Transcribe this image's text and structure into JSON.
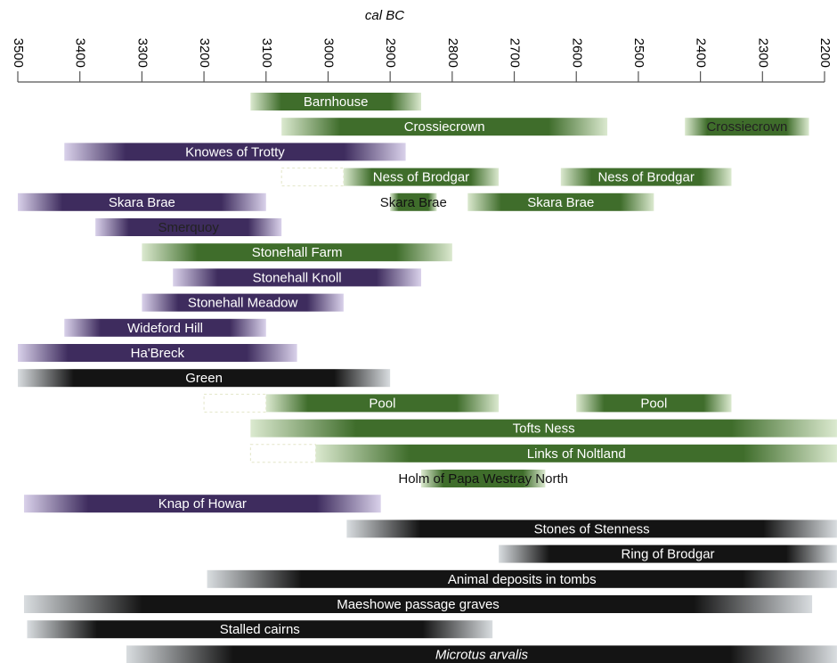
{
  "chart_data": {
    "type": "timeline",
    "x_label": "cal BC",
    "xlim": [
      3500,
      2200
    ],
    "xticks": [
      3500,
      3400,
      3300,
      3200,
      3100,
      3000,
      2900,
      2800,
      2700,
      2600,
      2500,
      2400,
      2300,
      2200
    ],
    "rows": [
      [
        {
          "label": "Barnhouse",
          "start": 3125,
          "end": 2850,
          "color": "green"
        }
      ],
      [
        {
          "label": "Crossiecrown",
          "start": 3075,
          "end": 2550,
          "color": "green"
        },
        {
          "label": "Crossiecrown",
          "start": 2425,
          "end": 2225,
          "color": "green",
          "label_color": "#222"
        }
      ],
      [
        {
          "label": "Knowes of Trotty",
          "start": 3425,
          "end": 2875,
          "color": "purple"
        }
      ],
      [
        {
          "start": 3075,
          "end": 2975,
          "dashed": true
        },
        {
          "label": "Ness of Brodgar",
          "start": 2975,
          "end": 2725,
          "color": "green"
        },
        {
          "label": "Ness of Brodgar",
          "start": 2625,
          "end": 2350,
          "color": "green"
        }
      ],
      [
        {
          "label": "Skara Brae",
          "start": 3500,
          "end": 3100,
          "color": "purple"
        },
        {
          "label": "Skara Brae",
          "start": 2900,
          "end": 2825,
          "color": "green",
          "label_color": "#111"
        },
        {
          "label": "Skara Brae",
          "start": 2775,
          "end": 2475,
          "color": "green"
        }
      ],
      [
        {
          "label": "Smerquoy",
          "start": 3375,
          "end": 3075,
          "color": "purple",
          "label_color": "#222"
        }
      ],
      [
        {
          "label": "Stonehall Farm",
          "start": 3300,
          "end": 2800,
          "color": "green"
        }
      ],
      [
        {
          "label": "Stonehall Knoll",
          "start": 3250,
          "end": 2850,
          "color": "purple"
        }
      ],
      [
        {
          "label": "Stonehall Meadow",
          "start": 3300,
          "end": 2975,
          "color": "purple"
        }
      ],
      [
        {
          "label": "Wideford Hill",
          "start": 3425,
          "end": 3100,
          "color": "purple"
        }
      ],
      [
        {
          "label": "Ha'Breck",
          "start": 3500,
          "end": 3050,
          "color": "purple"
        }
      ],
      [
        {
          "label": "Green",
          "start": 3500,
          "end": 2900,
          "color": "black"
        }
      ],
      [
        {
          "start": 3200,
          "end": 3100,
          "dashed": true
        },
        {
          "label": "Pool",
          "start": 3100,
          "end": 2725,
          "color": "green"
        },
        {
          "label": "Pool",
          "start": 2600,
          "end": 2350,
          "color": "green"
        }
      ],
      [
        {
          "label": "Tofts Ness",
          "start": 3125,
          "end": 2180,
          "color": "green"
        }
      ],
      [
        {
          "start": 3125,
          "end": 3020,
          "dashed": true
        },
        {
          "label": "Links of Noltland",
          "start": 3020,
          "end": 2180,
          "color": "green"
        }
      ],
      [
        {
          "label": "Holm of Papa Westray North",
          "start": 2850,
          "end": 2650,
          "color": "green",
          "label_color": "#111"
        }
      ],
      [
        {
          "label": "Knap of Howar",
          "start": 3490,
          "end": 2915,
          "color": "purple"
        }
      ],
      [
        {
          "label": "Stones of Stenness",
          "start": 2970,
          "end": 2180,
          "color": "black"
        }
      ],
      [
        {
          "label": "Ring of Brodgar",
          "start": 2725,
          "end": 2180,
          "color": "black"
        }
      ],
      [
        {
          "label": "Animal deposits in tombs",
          "start": 3195,
          "end": 2180,
          "color": "black"
        }
      ],
      [
        {
          "label": "Maeshowe passage graves",
          "start": 3490,
          "end": 2220,
          "color": "black"
        }
      ],
      [
        {
          "label": "Stalled cairns",
          "start": 3485,
          "end": 2735,
          "color": "black"
        }
      ],
      [
        {
          "label": "Microtus arvalis",
          "start": 3325,
          "end": 2180,
          "color": "black",
          "italic": true
        }
      ]
    ]
  }
}
